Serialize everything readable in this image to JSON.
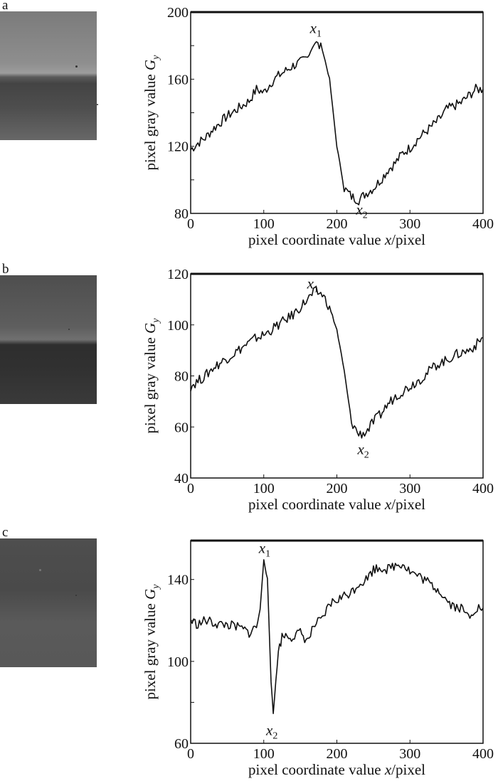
{
  "chart_data": [
    {
      "type": "line",
      "panel": "a",
      "xlabel": "pixel coordinate value x/pixel",
      "ylabel": "pixel gray value G_y",
      "xlim": [
        0,
        400
      ],
      "ylim": [
        80,
        200
      ],
      "xticks": [
        0,
        100,
        200,
        300,
        400
      ],
      "yticks_labeled": [
        80,
        120,
        160,
        200
      ],
      "yticks_minor": [
        100,
        140,
        180
      ],
      "annotations": [
        {
          "text": "x",
          "sub": "1",
          "x": 170,
          "y": 190
        },
        {
          "text": "x",
          "sub": "2",
          "x": 233,
          "y": 82
        }
      ],
      "x": [
        0,
        10,
        20,
        30,
        40,
        50,
        60,
        70,
        80,
        90,
        100,
        110,
        120,
        130,
        140,
        150,
        160,
        170,
        180,
        190,
        200,
        210,
        220,
        230,
        240,
        250,
        260,
        270,
        280,
        290,
        300,
        310,
        320,
        330,
        340,
        350,
        360,
        370,
        380,
        390,
        400
      ],
      "y": [
        118,
        122,
        125,
        130,
        134,
        138,
        141,
        144,
        147,
        154,
        152,
        158,
        162,
        165,
        168,
        170,
        173,
        182,
        178,
        160,
        120,
        95,
        90,
        88,
        92,
        95,
        100,
        106,
        110,
        116,
        119,
        124,
        128,
        132,
        136,
        142,
        144,
        146,
        150,
        154,
        154
      ]
    },
    {
      "type": "line",
      "panel": "b",
      "xlabel": "pixel coordinate value x/pixel",
      "ylabel": "pixel gray value G_y",
      "xlim": [
        0,
        400
      ],
      "ylim": [
        40,
        120
      ],
      "xticks": [
        0,
        100,
        200,
        300,
        400
      ],
      "yticks_labeled": [
        40,
        60,
        80,
        100,
        120
      ],
      "yticks_minor": [],
      "annotations": [
        {
          "text": "x",
          "sub": "1",
          "x": 166,
          "y": 116
        },
        {
          "text": "x",
          "sub": "2",
          "x": 235,
          "y": 51
        }
      ],
      "x": [
        0,
        10,
        20,
        30,
        40,
        50,
        60,
        70,
        80,
        90,
        100,
        110,
        120,
        130,
        140,
        150,
        160,
        170,
        180,
        190,
        200,
        210,
        220,
        230,
        240,
        250,
        260,
        270,
        280,
        290,
        300,
        310,
        320,
        330,
        340,
        350,
        360,
        370,
        380,
        390,
        400
      ],
      "y": [
        76,
        78,
        80,
        83,
        85,
        87,
        89,
        91,
        93,
        95,
        96,
        98,
        100,
        102,
        104,
        107,
        110,
        113,
        112,
        107,
        98,
        82,
        62,
        57,
        58,
        62,
        65,
        69,
        72,
        74,
        76,
        78,
        80,
        83,
        85,
        86,
        88,
        89,
        90,
        92,
        95
      ]
    },
    {
      "type": "line",
      "panel": "c",
      "xlabel": "pixel coordinate value x/pixel",
      "ylabel": "pixel gray value G_y",
      "xlim": [
        0,
        400
      ],
      "ylim": [
        60,
        159
      ],
      "xticks": [
        0,
        100,
        200,
        300,
        400
      ],
      "yticks_labeled": [
        60,
        100,
        140
      ],
      "yticks_minor": [
        80,
        120
      ],
      "annotations": [
        {
          "text": "x",
          "sub": "1",
          "x": 100,
          "y": 155
        },
        {
          "text": "x",
          "sub": "2",
          "x": 110,
          "y": 66
        }
      ],
      "x": [
        0,
        10,
        20,
        30,
        40,
        50,
        60,
        70,
        80,
        90,
        95,
        100,
        105,
        110,
        113,
        120,
        125,
        130,
        140,
        150,
        160,
        170,
        180,
        190,
        200,
        210,
        220,
        230,
        240,
        250,
        260,
        270,
        280,
        290,
        300,
        310,
        320,
        330,
        340,
        350,
        360,
        370,
        380,
        390,
        400
      ],
      "y": [
        120,
        118,
        120,
        119,
        118,
        118,
        117,
        116,
        114,
        117,
        125,
        150,
        140,
        90,
        75,
        105,
        112,
        113,
        112,
        114,
        110,
        118,
        120,
        128,
        130,
        132,
        134,
        138,
        140,
        145,
        146,
        145,
        147,
        148,
        144,
        142,
        140,
        137,
        135,
        130,
        127,
        126,
        122,
        126,
        126
      ]
    }
  ],
  "panel_labels": [
    "a",
    "b",
    "c"
  ]
}
